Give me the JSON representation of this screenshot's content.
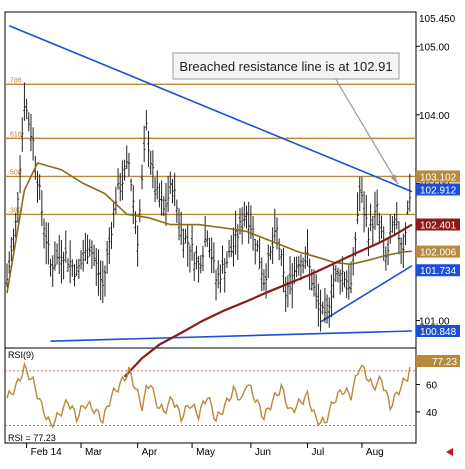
{
  "chart_data": [
    {
      "type": "candlestick-line",
      "annotation": "Breached resistance line is at 102.91",
      "ylim": [
        100.6,
        105.5
      ],
      "price_ticks": [
        101.0,
        102.0,
        103.0,
        104.0,
        105.0
      ],
      "price_tick_labels": [
        "101.00",
        "102.00",
        "103.00",
        "104.00",
        "105.00"
      ],
      "top_label": "105.450",
      "x_labels": [
        "Feb 14",
        "Mar",
        "Apr",
        "May",
        "Jun",
        "Jul",
        "Aug"
      ],
      "x_label_positions": [
        9,
        34,
        60,
        85,
        112,
        138,
        163
      ],
      "n_bars": 186,
      "horizontal_levels": [
        {
          "value": 104.445,
          "label": "104.445",
          "fib": ".786"
        },
        {
          "value": 103.657,
          "label": "103.657",
          "fib": ".618"
        },
        {
          "value": 103.102,
          "label": "103.102",
          "fib": ".500"
        },
        {
          "value": 102.548,
          "label": "102.548",
          "fib": ".382"
        }
      ],
      "price_tags": [
        {
          "value": 103.102,
          "label": "103.102",
          "bg": "#b8893a",
          "fg": "#ffffff"
        },
        {
          "value": 102.912,
          "label": "102.912",
          "bg": "#1d4fd6",
          "fg": "#ffffff"
        },
        {
          "value": 102.401,
          "label": "102.401",
          "bg": "#8b1a1a",
          "fg": "#ffffff"
        },
        {
          "value": 102.006,
          "label": "102.006",
          "bg": "#b8893a",
          "fg": "#ffffff"
        },
        {
          "value": 101.734,
          "label": "101.734",
          "bg": "#1d4fd6",
          "fg": "#ffffff"
        },
        {
          "value": 100.848,
          "label": "100.848",
          "bg": "#1d4fd6",
          "fg": "#ffffff"
        }
      ],
      "trendlines": [
        {
          "name": "resistance",
          "color": "#1d4fd6",
          "points": [
            [
              1,
              105.3
            ],
            [
              186,
              102.88
            ]
          ]
        },
        {
          "name": "support",
          "color": "#1d4fd6",
          "points": [
            [
              144,
              100.98
            ],
            [
              186,
              101.8
            ]
          ]
        },
        {
          "name": "floor",
          "color": "#1d4fd6",
          "points": [
            [
              20,
              100.7
            ],
            [
              186,
              100.848
            ]
          ]
        }
      ],
      "ma_fast": {
        "color": "#8b6a1a",
        "points": [
          [
            0,
            101.4
          ],
          [
            8,
            102.9
          ],
          [
            14,
            103.3
          ],
          [
            25,
            103.2
          ],
          [
            35,
            103.0
          ],
          [
            45,
            102.85
          ],
          [
            55,
            102.55
          ],
          [
            65,
            102.5
          ],
          [
            75,
            102.4
          ],
          [
            88,
            102.4
          ],
          [
            100,
            102.35
          ],
          [
            110,
            102.3
          ],
          [
            118,
            102.2
          ],
          [
            126,
            102.1
          ],
          [
            134,
            102.0
          ],
          [
            142,
            101.93
          ],
          [
            150,
            101.85
          ],
          [
            158,
            101.82
          ],
          [
            166,
            101.88
          ],
          [
            174,
            101.95
          ],
          [
            182,
            102.0
          ],
          [
            186,
            102.01
          ]
        ]
      },
      "ma_slow": {
        "color": "#8b1a1a",
        "points": [
          [
            54,
            100.18
          ],
          [
            62,
            100.45
          ],
          [
            70,
            100.65
          ],
          [
            80,
            100.82
          ],
          [
            90,
            101.0
          ],
          [
            100,
            101.15
          ],
          [
            110,
            101.28
          ],
          [
            120,
            101.42
          ],
          [
            130,
            101.55
          ],
          [
            140,
            101.68
          ],
          [
            150,
            101.83
          ],
          [
            160,
            101.98
          ],
          [
            170,
            102.12
          ],
          [
            178,
            102.25
          ],
          [
            186,
            102.4
          ]
        ]
      },
      "close_path": [
        [
          0,
          101.6
        ],
        [
          4,
          102.4
        ],
        [
          8,
          104.2
        ],
        [
          12,
          103.6
        ],
        [
          16,
          102.6
        ],
        [
          20,
          101.8
        ],
        [
          26,
          102.0
        ],
        [
          32,
          101.7
        ],
        [
          38,
          102.1
        ],
        [
          44,
          101.5
        ],
        [
          50,
          102.8
        ],
        [
          56,
          103.3
        ],
        [
          60,
          102.2
        ],
        [
          64,
          103.8
        ],
        [
          68,
          102.9
        ],
        [
          72,
          102.6
        ],
        [
          76,
          103.0
        ],
        [
          80,
          102.3
        ],
        [
          84,
          102.1
        ],
        [
          88,
          101.8
        ],
        [
          92,
          102.3
        ],
        [
          96,
          101.6
        ],
        [
          100,
          101.8
        ],
        [
          104,
          102.1
        ],
        [
          110,
          102.6
        ],
        [
          114,
          102.2
        ],
        [
          118,
          101.6
        ],
        [
          124,
          102.3
        ],
        [
          128,
          101.4
        ],
        [
          134,
          101.9
        ],
        [
          138,
          101.9
        ],
        [
          142,
          101.3
        ],
        [
          146,
          101.0
        ],
        [
          150,
          101.6
        ],
        [
          154,
          101.7
        ],
        [
          158,
          101.5
        ],
        [
          162,
          102.9
        ],
        [
          166,
          102.3
        ],
        [
          170,
          102.6
        ],
        [
          174,
          101.9
        ],
        [
          178,
          102.4
        ],
        [
          182,
          102.1
        ],
        [
          186,
          103.1
        ]
      ],
      "price_axis_color": "#000000"
    },
    {
      "type": "line",
      "indicator": "RSI(9)",
      "last_value": "77.23",
      "bottom_label": "RSI = 77.23",
      "ylim": [
        18,
        86
      ],
      "ticks": [
        40,
        60
      ],
      "levels": [
        {
          "value": 70,
          "color": "#cc3333"
        },
        {
          "value": 30,
          "color": "#cc3333"
        }
      ],
      "color": "#b8893a",
      "points": [
        [
          0,
          50
        ],
        [
          4,
          58
        ],
        [
          8,
          72
        ],
        [
          12,
          62
        ],
        [
          16,
          44
        ],
        [
          20,
          30
        ],
        [
          24,
          38
        ],
        [
          28,
          48
        ],
        [
          32,
          36
        ],
        [
          36,
          46
        ],
        [
          40,
          42
        ],
        [
          44,
          34
        ],
        [
          48,
          52
        ],
        [
          52,
          60
        ],
        [
          56,
          70
        ],
        [
          58,
          62
        ],
        [
          62,
          44
        ],
        [
          64,
          56
        ],
        [
          66,
          62
        ],
        [
          68,
          48
        ],
        [
          72,
          40
        ],
        [
          76,
          50
        ],
        [
          80,
          36
        ],
        [
          84,
          46
        ],
        [
          88,
          38
        ],
        [
          92,
          52
        ],
        [
          96,
          34
        ],
        [
          100,
          44
        ],
        [
          104,
          56
        ],
        [
          108,
          48
        ],
        [
          110,
          62
        ],
        [
          114,
          50
        ],
        [
          118,
          36
        ],
        [
          122,
          48
        ],
        [
          126,
          58
        ],
        [
          130,
          40
        ],
        [
          134,
          46
        ],
        [
          138,
          52
        ],
        [
          142,
          34
        ],
        [
          146,
          32
        ],
        [
          150,
          48
        ],
        [
          154,
          56
        ],
        [
          158,
          52
        ],
        [
          162,
          74
        ],
        [
          164,
          70
        ],
        [
          168,
          58
        ],
        [
          172,
          64
        ],
        [
          176,
          44
        ],
        [
          180,
          56
        ],
        [
          184,
          66
        ],
        [
          186,
          77
        ]
      ]
    }
  ]
}
